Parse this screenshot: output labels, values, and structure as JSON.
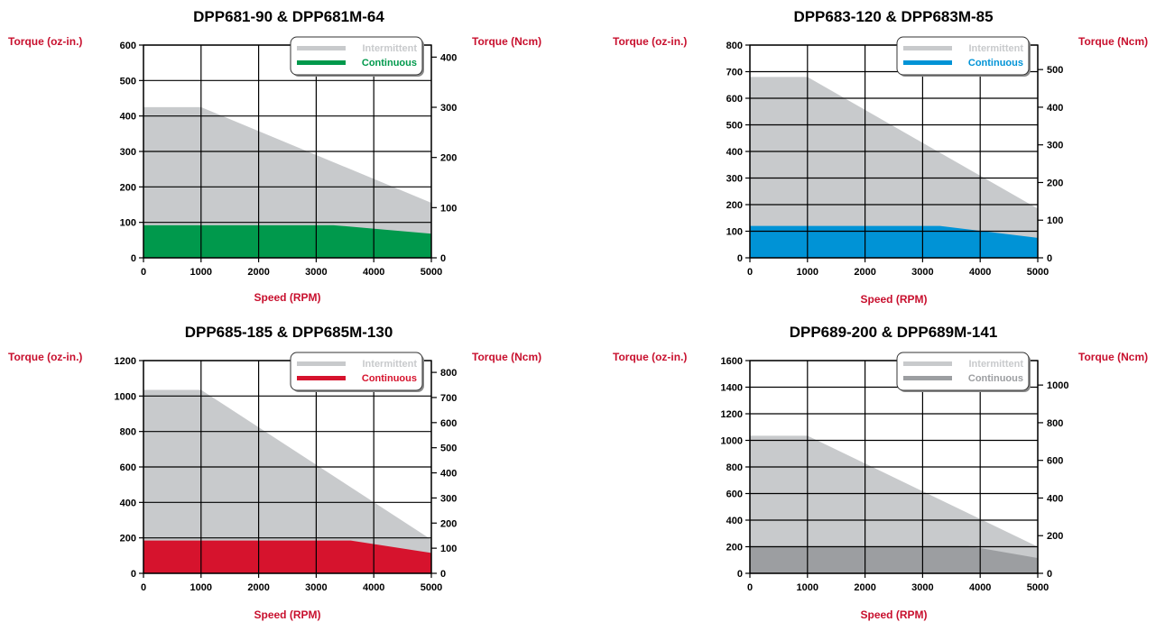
{
  "colors": {
    "axis_label": "#c8102e",
    "intermittent_fill": "#c8cacc",
    "grid": "#000000",
    "text": "#000000"
  },
  "chart_data": [
    {
      "type": "area",
      "title": "DPP681-90 & DPP681M-64",
      "xlabel": "Speed (RPM)",
      "ylabel": "Torque (oz-in.)",
      "y2label": "Torque (Ncm)",
      "xlim": [
        0,
        5000
      ],
      "ylim": [
        0,
        600
      ],
      "y2lim": [
        0,
        424
      ],
      "x_ticks": [
        0,
        1000,
        2000,
        3000,
        4000,
        5000
      ],
      "y_ticks": [
        0,
        100,
        200,
        300,
        400,
        500,
        600
      ],
      "y2_ticks": [
        0,
        100,
        200,
        300,
        400
      ],
      "grid": true,
      "legend": "top-right",
      "continuous_color": "#00994c",
      "series": [
        {
          "name": "Intermittent",
          "x": [
            0,
            1000,
            5000
          ],
          "y": [
            425,
            425,
            155
          ]
        },
        {
          "name": "Continuous",
          "x": [
            0,
            3300,
            5000
          ],
          "y": [
            92,
            92,
            68
          ]
        }
      ]
    },
    {
      "type": "area",
      "title": "DPP683-120 & DPP683M-85",
      "xlabel": "Speed (RPM)",
      "ylabel": "Torque (oz-in.)",
      "y2label": "Torque (Ncm)",
      "xlim": [
        0,
        5000
      ],
      "ylim": [
        0,
        800
      ],
      "y2lim": [
        0,
        565
      ],
      "x_ticks": [
        0,
        1000,
        2000,
        3000,
        4000,
        5000
      ],
      "y_ticks": [
        0,
        100,
        200,
        300,
        400,
        500,
        600,
        700,
        800
      ],
      "y2_ticks": [
        0,
        100,
        200,
        300,
        400,
        500
      ],
      "grid": true,
      "legend": "top-right",
      "continuous_color": "#0093d6",
      "series": [
        {
          "name": "Intermittent",
          "x": [
            0,
            1000,
            5000
          ],
          "y": [
            680,
            680,
            185
          ]
        },
        {
          "name": "Continuous",
          "x": [
            0,
            3300,
            5000
          ],
          "y": [
            120,
            120,
            75
          ]
        }
      ]
    },
    {
      "type": "area",
      "title": "DPP685-185 & DPP685M-130",
      "xlabel": "Speed (RPM)",
      "ylabel": "Torque (oz-in.)",
      "y2label": "Torque (Ncm)",
      "xlim": [
        0,
        5000
      ],
      "ylim": [
        0,
        1200
      ],
      "y2lim": [
        0,
        847
      ],
      "x_ticks": [
        0,
        1000,
        2000,
        3000,
        4000,
        5000
      ],
      "y_ticks": [
        0,
        200,
        400,
        600,
        800,
        1000,
        1200
      ],
      "y2_ticks": [
        0,
        100,
        200,
        300,
        400,
        500,
        600,
        700,
        800
      ],
      "grid": true,
      "legend": "top-right",
      "continuous_color": "#d6132d",
      "series": [
        {
          "name": "Intermittent",
          "x": [
            0,
            1000,
            5000
          ],
          "y": [
            1035,
            1035,
            190
          ]
        },
        {
          "name": "Continuous",
          "x": [
            0,
            3600,
            5000
          ],
          "y": [
            185,
            185,
            115
          ]
        }
      ]
    },
    {
      "type": "area",
      "title": "DPP689-200 & DPP689M-141",
      "xlabel": "Speed (RPM)",
      "ylabel": "Torque (oz-in.)",
      "y2label": "Torque (Ncm)",
      "xlim": [
        0,
        5000
      ],
      "ylim": [
        0,
        1600
      ],
      "y2lim": [
        0,
        1130
      ],
      "x_ticks": [
        0,
        1000,
        2000,
        3000,
        4000,
        5000
      ],
      "y_ticks": [
        0,
        200,
        400,
        600,
        800,
        1000,
        1200,
        1400,
        1600
      ],
      "y2_ticks": [
        0,
        200,
        400,
        600,
        800,
        1000
      ],
      "grid": true,
      "legend": "top-right",
      "continuous_color": "#9c9ea1",
      "series": [
        {
          "name": "Intermittent",
          "x": [
            0,
            1000,
            5000
          ],
          "y": [
            1035,
            1035,
            200
          ]
        },
        {
          "name": "Continuous",
          "x": [
            0,
            3800,
            5000
          ],
          "y": [
            205,
            205,
            115
          ]
        }
      ]
    }
  ]
}
